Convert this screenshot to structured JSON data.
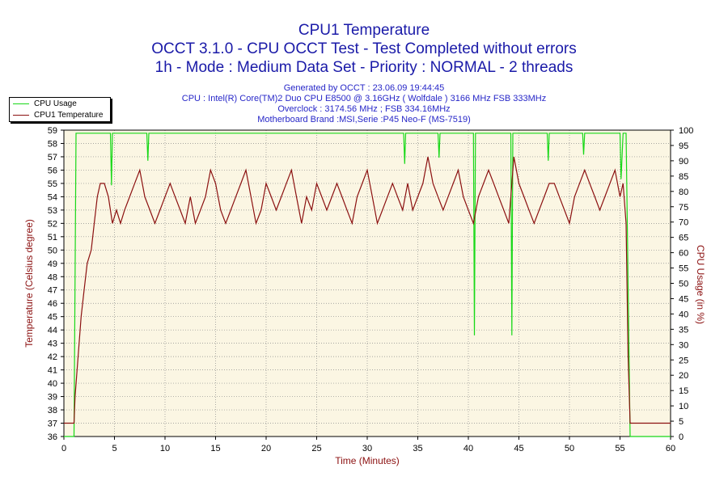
{
  "chart_data": {
    "type": "line",
    "title": "CPU1 Temperature",
    "subtitle_lines": [
      "OCCT 3.1.0 - CPU OCCT Test - Test Completed without errors",
      "1h - Mode : Medium Data Set - Priority : NORMAL - 2 threads"
    ],
    "info_lines": [
      "Generated by OCCT : 23.06.09 19:44:45",
      "CPU : Intel(R) Core(TM)2 Duo CPU E8500 @ 3.16GHz ( Wolfdale ) 3166 MHz FSB 333MHz",
      "Overclock : 3174.56 MHz ; FSB 334.16MHz",
      "Motherboard Brand :MSI,Serie :P45 Neo-F (MS-7519)"
    ],
    "xlabel": "Time (Minutes)",
    "ylabel": "Temperature (Celsius degree)",
    "y2label": "CPU Usage (in %)",
    "xlim": [
      0,
      60
    ],
    "ylim": [
      36,
      59
    ],
    "y2lim": [
      0,
      100
    ],
    "xticks": [
      0,
      5,
      10,
      15,
      20,
      25,
      30,
      35,
      40,
      45,
      50,
      55,
      60
    ],
    "yticks": [
      36,
      37,
      38,
      39,
      40,
      41,
      42,
      43,
      44,
      45,
      46,
      47,
      48,
      49,
      50,
      51,
      52,
      53,
      54,
      55,
      56,
      57,
      58,
      59
    ],
    "y2ticks": [
      0,
      5,
      10,
      15,
      20,
      25,
      30,
      35,
      40,
      45,
      50,
      55,
      60,
      65,
      70,
      75,
      80,
      85,
      90,
      95,
      100
    ],
    "grid": true,
    "legend_position": "top-left, outside plot",
    "series": [
      {
        "name": "CPU Usage",
        "axis": "right",
        "color": "#18d818",
        "x": [
          0,
          1.0,
          1.2,
          4.6,
          4.7,
          4.8,
          5.0,
          8.2,
          8.3,
          8.4,
          8.6,
          33.6,
          33.7,
          33.8,
          34.0,
          37.0,
          37.1,
          37.2,
          37.4,
          40.5,
          40.6,
          40.7,
          40.9,
          44.2,
          44.3,
          44.4,
          44.6,
          47.8,
          47.9,
          48.0,
          48.2,
          51.3,
          51.4,
          51.5,
          51.7,
          55.0,
          55.1,
          55.3,
          55.6,
          56.0,
          60
        ],
        "values": [
          0,
          0,
          99,
          99,
          82,
          99,
          99,
          99,
          90,
          99,
          99,
          99,
          89,
          99,
          99,
          99,
          91,
          99,
          99,
          99,
          33,
          99,
          99,
          99,
          33,
          99,
          99,
          99,
          90,
          99,
          99,
          99,
          92,
          99,
          99,
          99,
          84,
          99,
          99,
          0,
          0
        ]
      },
      {
        "name": "CPU1 Temperature",
        "axis": "left",
        "color": "#8b1010",
        "x": [
          0,
          1.0,
          1.1,
          1.3,
          1.5,
          1.7,
          2.0,
          2.3,
          2.7,
          3.0,
          3.3,
          3.6,
          4.0,
          4.4,
          4.8,
          5.2,
          5.6,
          6.0,
          6.5,
          7.0,
          7.5,
          8.0,
          8.5,
          9.0,
          9.5,
          10.0,
          10.5,
          11.0,
          11.5,
          12.0,
          12.5,
          13.0,
          13.5,
          14.0,
          14.5,
          15.0,
          15.5,
          16.0,
          16.5,
          17.0,
          17.5,
          18.0,
          18.5,
          19.0,
          19.5,
          20.0,
          20.5,
          21.0,
          21.5,
          22.0,
          22.5,
          23.0,
          23.5,
          24.0,
          24.5,
          25.0,
          25.5,
          26.0,
          26.5,
          27.0,
          27.5,
          28.0,
          28.5,
          29.0,
          29.5,
          30.0,
          30.5,
          31.0,
          31.5,
          32.0,
          32.5,
          33.0,
          33.5,
          34.0,
          34.5,
          35.0,
          35.5,
          36.0,
          36.5,
          37.0,
          37.5,
          38.0,
          38.5,
          39.0,
          39.5,
          40.0,
          40.5,
          41.0,
          41.5,
          42.0,
          42.5,
          43.0,
          43.5,
          44.0,
          44.5,
          45.0,
          45.5,
          46.0,
          46.5,
          47.0,
          47.5,
          48.0,
          48.5,
          49.0,
          49.5,
          50.0,
          50.5,
          51.0,
          51.5,
          52.0,
          52.5,
          53.0,
          53.5,
          54.0,
          54.5,
          55.0,
          55.3,
          55.6,
          55.8,
          56.0,
          56.2,
          60
        ],
        "values": [
          37,
          37,
          39,
          41,
          43,
          45,
          47,
          49,
          50,
          52,
          54,
          55,
          55,
          54,
          52,
          53,
          52,
          53,
          54,
          55,
          56,
          54,
          53,
          52,
          53,
          54,
          55,
          54,
          53,
          52,
          54,
          52,
          53,
          54,
          56,
          55,
          53,
          52,
          53,
          54,
          55,
          56,
          54,
          52,
          53,
          55,
          54,
          53,
          54,
          55,
          56,
          54,
          52,
          54,
          53,
          55,
          54,
          53,
          54,
          55,
          54,
          53,
          52,
          54,
          55,
          56,
          54,
          52,
          53,
          54,
          55,
          54,
          53,
          55,
          53,
          54,
          55,
          57,
          55,
          54,
          53,
          54,
          55,
          56,
          54,
          53,
          52,
          54,
          55,
          56,
          55,
          54,
          53,
          52,
          57,
          55,
          54,
          53,
          52,
          53,
          54,
          55,
          55,
          54,
          53,
          52,
          54,
          55,
          56,
          55,
          54,
          53,
          54,
          55,
          56,
          54,
          55,
          52,
          42,
          37,
          37,
          37
        ]
      }
    ]
  }
}
